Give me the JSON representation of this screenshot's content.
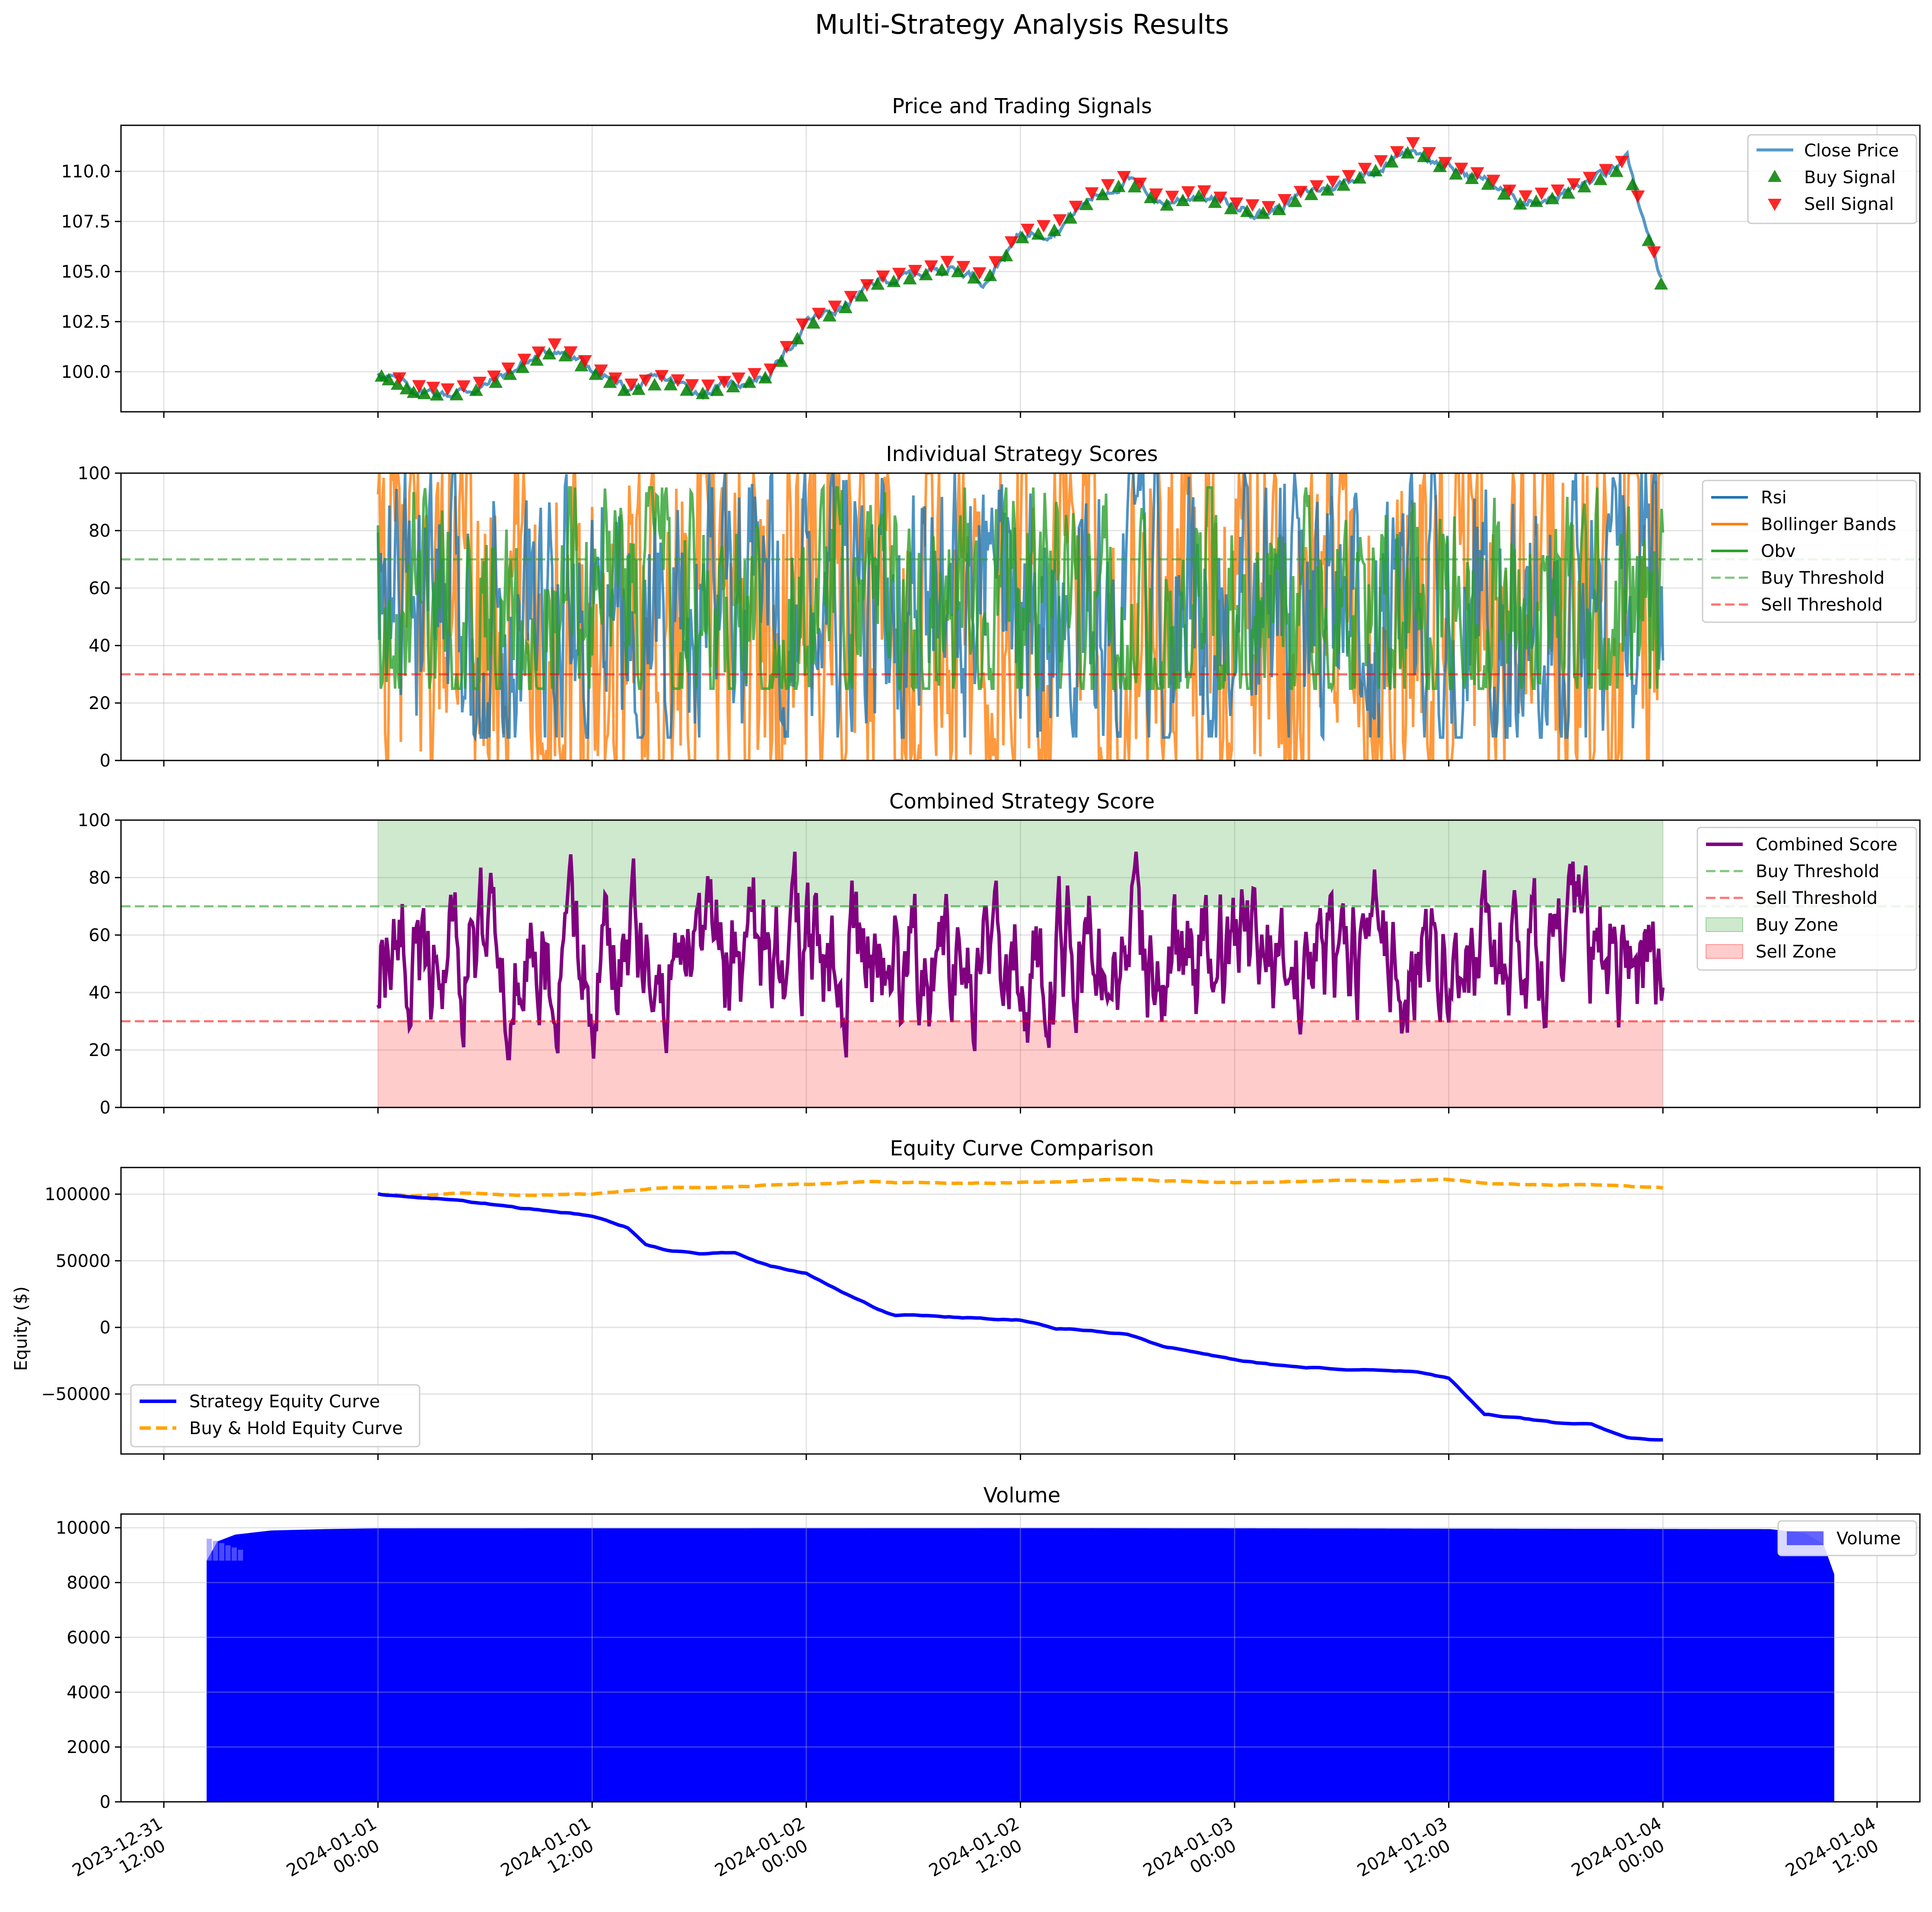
{
  "figure": {
    "title": "Multi-Strategy Analysis Results",
    "x_tick_labels": [
      [
        "2023-12-31",
        "12:00"
      ],
      [
        "2024-01-01",
        "00:00"
      ],
      [
        "2024-01-01",
        "12:00"
      ],
      [
        "2024-01-02",
        "00:00"
      ],
      [
        "2024-01-02",
        "12:00"
      ],
      [
        "2024-01-03",
        "00:00"
      ],
      [
        "2024-01-03",
        "12:00"
      ],
      [
        "2024-01-04",
        "00:00"
      ],
      [
        "2024-01-04",
        "12:00"
      ]
    ],
    "colors": {
      "close": "#1f77b4",
      "buy_signal": "#008000",
      "sell_signal": "#ff0000",
      "rsi": "#1f77b4",
      "bollinger": "#ff7f0e",
      "obv": "#2ca02c",
      "combined": "#800080",
      "buy_zone": "#2ca02c",
      "sell_zone": "#ff0000",
      "strategy_equity": "#0000ff",
      "buyhold_equity": "#ffa500",
      "volume": "#0000ff"
    }
  },
  "chart_data": [
    {
      "type": "line",
      "title": "Price and Trading Signals",
      "ylabel": "",
      "ylim": [
        98.0,
        112.3
      ],
      "yticks": [
        "100.0",
        "102.5",
        "105.0",
        "107.5",
        "110.0"
      ],
      "ytick_values": [
        100.0,
        102.5,
        105.0,
        107.5,
        110.0
      ],
      "legend": [
        "Close Price",
        "Buy Signal",
        "Sell Signal"
      ],
      "legend_position": "upper right",
      "x_hours": [
        0,
        2,
        4,
        6,
        8,
        10,
        12,
        14,
        16,
        18,
        20,
        22,
        24,
        26,
        28,
        30,
        32,
        34,
        36,
        38,
        40,
        42,
        44,
        46,
        48,
        50,
        52,
        54,
        56,
        58,
        60,
        62,
        64,
        66,
        68,
        70,
        72
      ],
      "close": [
        100.0,
        99.1,
        98.9,
        99.3,
        100.3,
        101.2,
        100.1,
        99.1,
        99.6,
        99.0,
        99.4,
        99.9,
        102.4,
        103.2,
        104.5,
        104.8,
        105.3,
        104.6,
        106.8,
        107.2,
        108.7,
        109.6,
        108.4,
        108.9,
        108.2,
        108.0,
        108.9,
        109.4,
        110.2,
        111.2,
        110.1,
        109.6,
        108.5,
        108.8,
        109.5,
        110.4,
        104.2
      ],
      "buy_signals_hours": [
        0.2,
        0.6,
        1.1,
        1.6,
        2.0,
        2.6,
        3.3,
        4.4,
        5.5,
        6.6,
        7.4,
        8.1,
        8.9,
        9.6,
        10.5,
        11.4,
        12.2,
        13.0,
        13.8,
        14.6,
        15.5,
        16.4,
        17.3,
        18.2,
        19.0,
        19.9,
        20.8,
        21.7,
        22.6,
        23.5,
        24.4,
        25.3,
        26.2,
        27.1,
        28.0,
        28.9,
        29.8,
        30.7,
        31.6,
        32.5,
        33.4,
        34.3,
        35.2,
        36.1,
        37.0,
        37.9,
        38.8,
        39.7,
        40.6,
        41.5,
        42.4,
        43.3,
        44.2,
        45.1,
        46.0,
        46.9,
        47.8,
        48.7,
        49.6,
        50.5,
        51.4,
        52.3,
        53.2,
        54.1,
        55.0,
        55.9,
        56.8,
        57.7,
        58.6,
        59.5,
        60.4,
        61.3,
        62.2,
        63.1,
        64.0,
        64.9,
        65.8,
        66.7,
        67.6,
        68.5,
        69.4,
        70.3,
        71.2,
        71.9
      ],
      "sell_signals_hours": [
        1.2,
        2.3,
        3.1,
        3.9,
        4.8,
        5.7,
        6.5,
        7.3,
        8.2,
        9.0,
        9.9,
        10.8,
        11.6,
        12.5,
        13.3,
        14.2,
        15.0,
        15.9,
        16.8,
        17.6,
        18.5,
        19.4,
        20.2,
        21.1,
        22.0,
        22.9,
        23.8,
        24.7,
        25.6,
        26.5,
        27.4,
        28.3,
        29.2,
        30.1,
        31.0,
        31.9,
        32.8,
        33.7,
        34.6,
        35.5,
        36.4,
        37.3,
        38.2,
        39.1,
        40.0,
        40.9,
        41.8,
        42.7,
        43.6,
        44.5,
        45.4,
        46.3,
        47.2,
        48.1,
        49.0,
        49.9,
        50.8,
        51.7,
        52.6,
        53.5,
        54.4,
        55.3,
        56.2,
        57.1,
        58.0,
        58.9,
        59.8,
        60.7,
        61.6,
        62.5,
        63.4,
        64.3,
        65.2,
        66.1,
        67.0,
        67.9,
        68.8,
        69.7,
        70.6,
        71.5
      ]
    },
    {
      "type": "line",
      "title": "Individual Strategy Scores",
      "ylim": [
        0,
        100
      ],
      "yticks": [
        "0",
        "20",
        "40",
        "60",
        "80",
        "100"
      ],
      "ytick_values": [
        0,
        20,
        40,
        60,
        80,
        100
      ],
      "legend": [
        "Rsi",
        "Bollinger Bands",
        "Obv",
        "Buy Threshold",
        "Sell Threshold"
      ],
      "legend_position": "upper right",
      "buy_threshold": 70,
      "sell_threshold": 30,
      "x_range_hours": [
        0,
        72
      ],
      "series_style": "high-frequency oscillation; RSI and OBV roughly 25-95, Bollinger Bands 0-100"
    },
    {
      "type": "line",
      "title": "Combined Strategy Score",
      "ylim": [
        0,
        100
      ],
      "yticks": [
        "0",
        "20",
        "40",
        "60",
        "80",
        "100"
      ],
      "ytick_values": [
        0,
        20,
        40,
        60,
        80,
        100
      ],
      "legend": [
        "Combined Score",
        "Buy Threshold",
        "Sell Threshold",
        "Buy Zone",
        "Sell Zone"
      ],
      "legend_position": "upper right",
      "buy_threshold": 70,
      "sell_threshold": 30,
      "buy_zone": [
        70,
        100
      ],
      "sell_zone": [
        0,
        30
      ],
      "x_range_hours": [
        0,
        72
      ],
      "series_range": [
        17,
        89
      ]
    },
    {
      "type": "line",
      "title": "Equity Curve Comparison",
      "ylabel": "Equity ($)",
      "ylim": [
        -95000,
        120000
      ],
      "yticks": [
        "100000",
        "50000",
        "0",
        "−50000"
      ],
      "ytick_values": [
        100000,
        50000,
        0,
        -50000
      ],
      "legend": [
        "Strategy Equity Curve",
        "Buy & Hold Equity Curve"
      ],
      "legend_position": "lower left",
      "x_hours": [
        0,
        2,
        4,
        6,
        8,
        10,
        12,
        14,
        15,
        16,
        18,
        20,
        22,
        24,
        26,
        28,
        29,
        30,
        32,
        34,
        36,
        38,
        40,
        42,
        44,
        46,
        48,
        50,
        52,
        54,
        56,
        58,
        60,
        62,
        64,
        66,
        68,
        70,
        72
      ],
      "strategy": [
        100000,
        97000,
        96000,
        93000,
        89000,
        87000,
        84000,
        75000,
        63000,
        59000,
        55000,
        56000,
        46000,
        41000,
        27000,
        14000,
        9000,
        9000,
        8000,
        7000,
        6000,
        -1000,
        -2000,
        -5000,
        -14000,
        -18000,
        -24000,
        -28000,
        -30000,
        -31000,
        -32000,
        -33000,
        -38000,
        -65000,
        -68000,
        -72000,
        -73000,
        -83000,
        -85000
      ],
      "buy_hold": [
        100000,
        99000,
        100000,
        100500,
        99500,
        99700,
        99900,
        102400,
        103200,
        104500,
        104800,
        105300,
        106800,
        107200,
        108700,
        109600,
        108400,
        108900,
        108200,
        108000,
        108900,
        109400,
        110200,
        111200,
        110100,
        109600,
        108500,
        108800,
        109500,
        110400,
        109800,
        110200,
        110600,
        108500,
        107200,
        106900,
        107000,
        105500,
        104200
      ]
    },
    {
      "type": "bar",
      "title": "Volume",
      "ylim": [
        0,
        10500
      ],
      "yticks": [
        "0",
        "2000",
        "4000",
        "6000",
        "8000",
        "10000"
      ],
      "ytick_values": [
        0,
        2000,
        4000,
        6000,
        8000,
        10000
      ],
      "legend": [
        "Volume"
      ],
      "legend_position": "upper right",
      "x_range_hours": [
        -9.6,
        81.6
      ],
      "values_profile_hours": [
        -9.6,
        -9.0,
        -8.0,
        -6.0,
        -3.0,
        0,
        40,
        78,
        80,
        81.0,
        81.6
      ],
      "values_profile": [
        8800,
        9500,
        9750,
        9900,
        9950,
        9980,
        9990,
        9950,
        9800,
        9400,
        8300
      ]
    }
  ]
}
